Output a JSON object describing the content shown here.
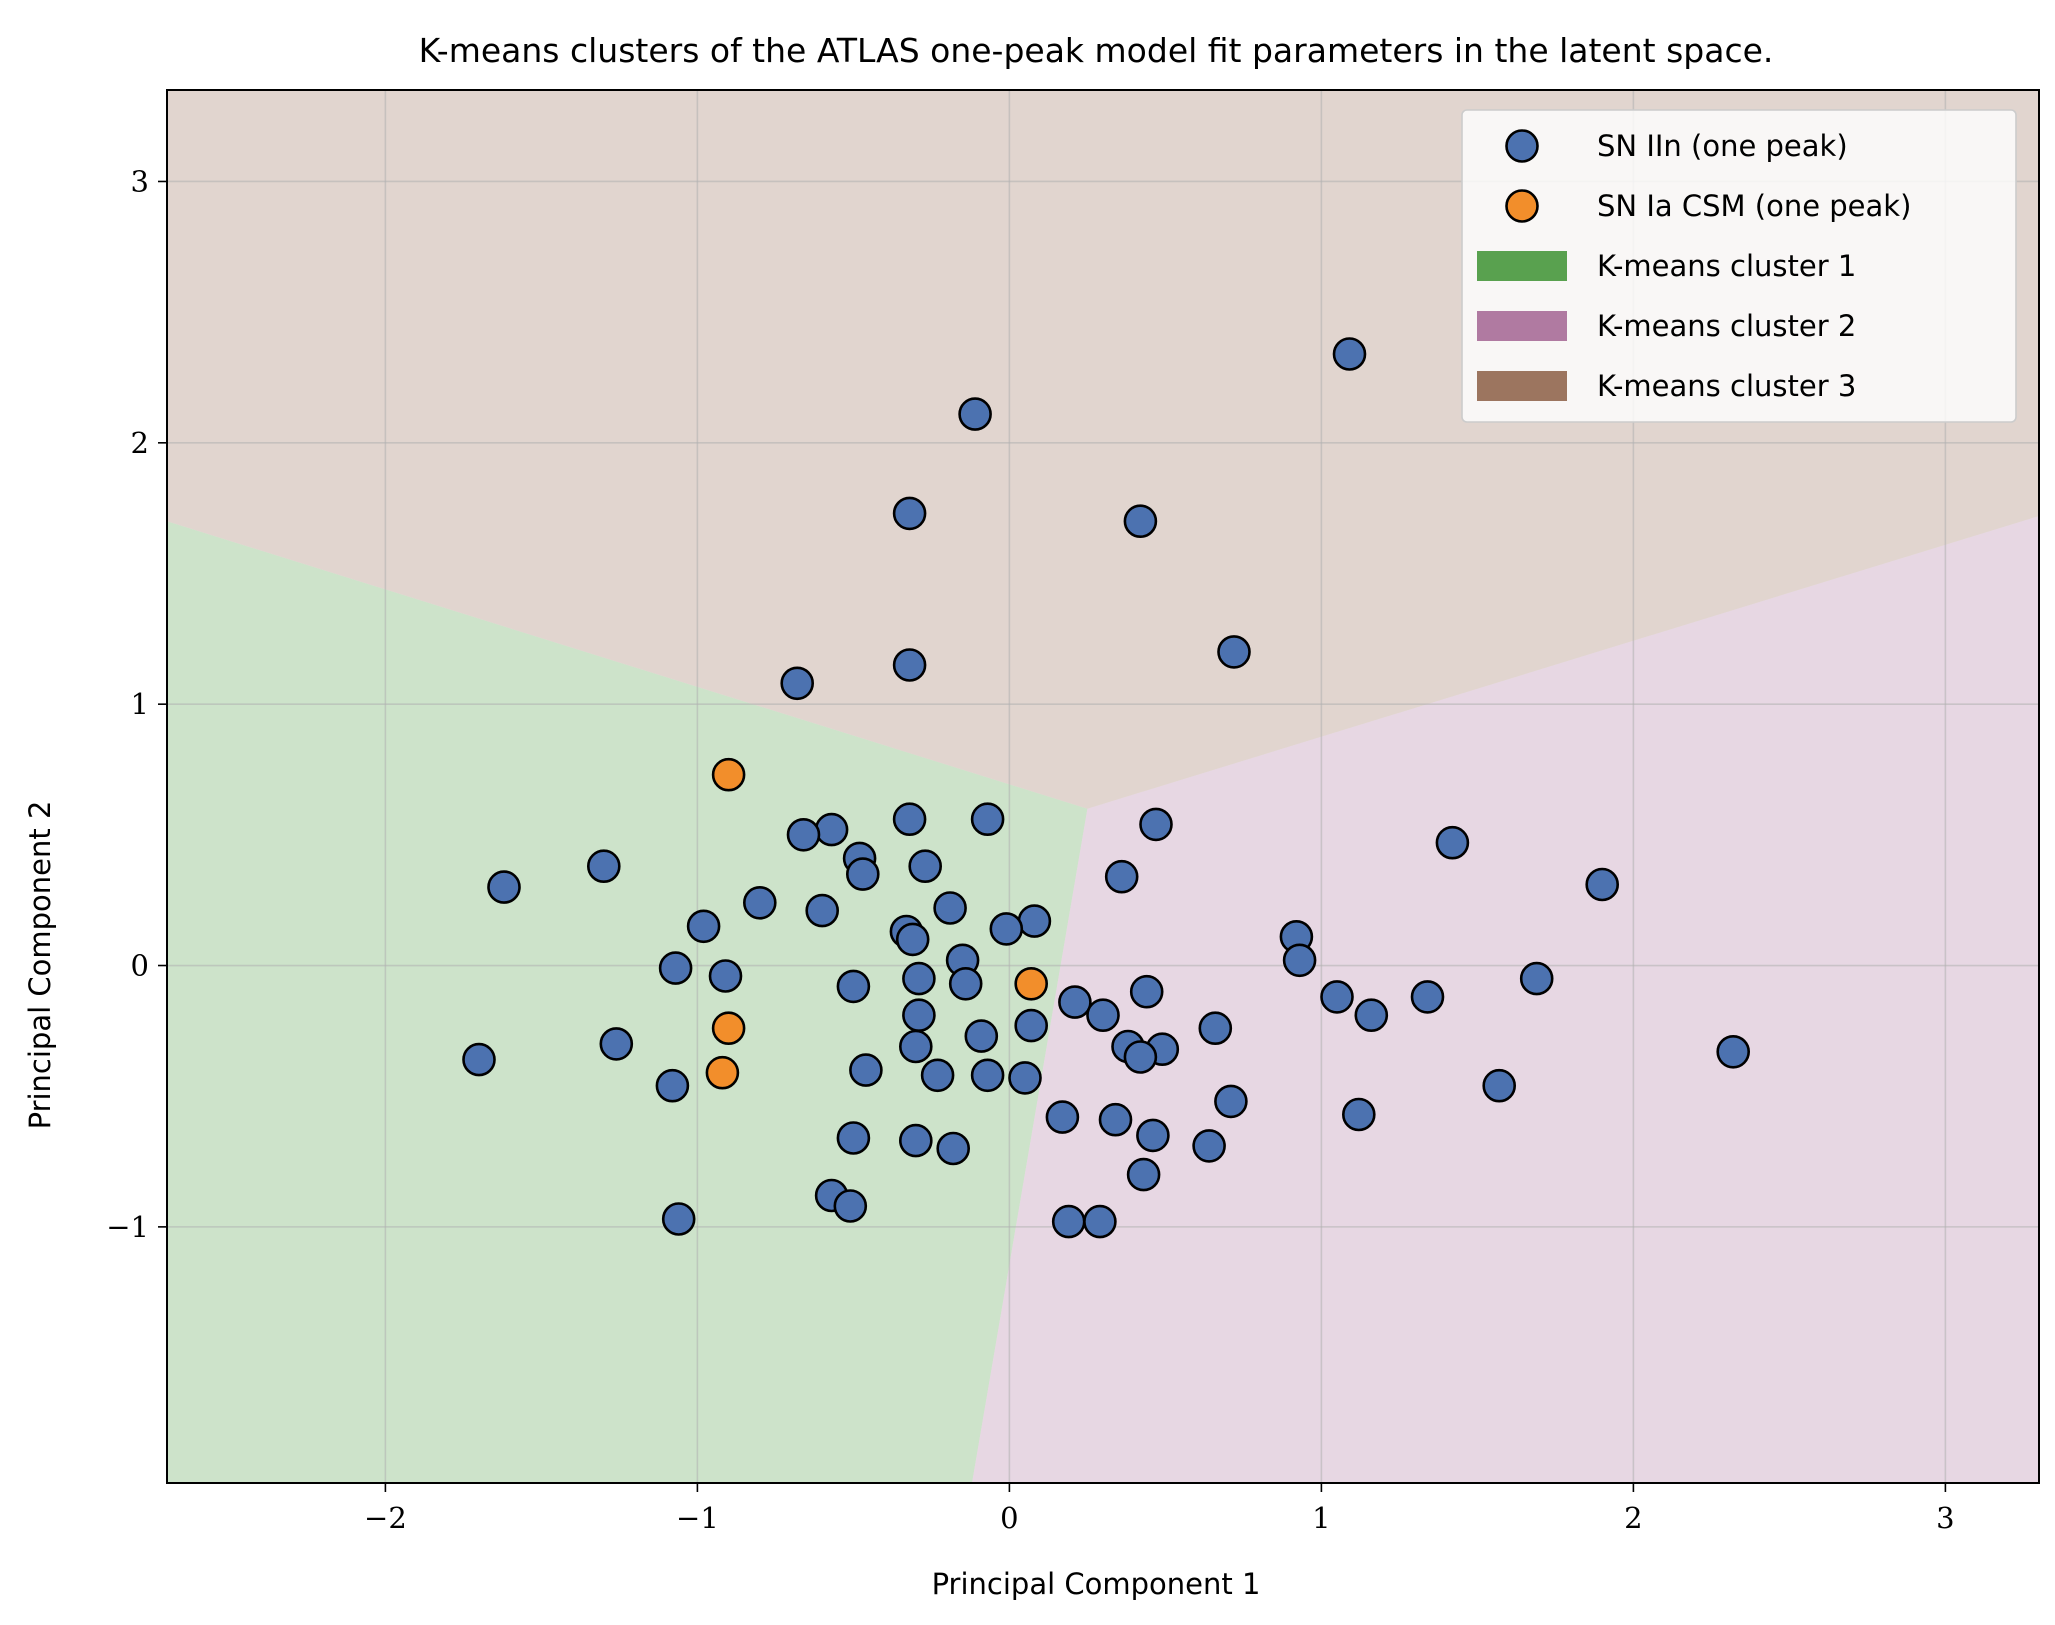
{
  "chart_data": {
    "type": "scatter",
    "title": "K-means clusters of the ATLAS one-peak model fit parameters in the latent space.",
    "xlabel": "Principal Component 1",
    "ylabel": "Principal Component 2",
    "xlim": [
      -2.7,
      3.3
    ],
    "ylim": [
      -1.98,
      3.35
    ],
    "xticks": [
      -2,
      -1,
      0,
      1,
      2,
      3
    ],
    "yticks": [
      -1,
      0,
      1,
      2,
      3
    ],
    "xtick_labels": [
      "−2",
      "−1",
      "0",
      "1",
      "2",
      "3"
    ],
    "ytick_labels": [
      "−1",
      "0",
      "1",
      "2",
      "3"
    ],
    "grid": true,
    "legend_position": "top-right",
    "series": [
      {
        "name": "SN IIn (one peak)",
        "kind": "points",
        "color": "#4c72b0",
        "points": [
          [
            1.09,
            2.34
          ],
          [
            -0.11,
            2.11
          ],
          [
            -0.32,
            1.73
          ],
          [
            0.42,
            1.7
          ],
          [
            0.72,
            1.2
          ],
          [
            -0.32,
            1.15
          ],
          [
            -0.68,
            1.08
          ],
          [
            -0.32,
            0.56
          ],
          [
            -0.07,
            0.56
          ],
          [
            0.47,
            0.54
          ],
          [
            -0.57,
            0.52
          ],
          [
            -0.66,
            0.5
          ],
          [
            1.42,
            0.47
          ],
          [
            -0.48,
            0.41
          ],
          [
            -0.47,
            0.35
          ],
          [
            -0.27,
            0.38
          ],
          [
            0.36,
            0.34
          ],
          [
            -1.62,
            0.3
          ],
          [
            -1.3,
            0.38
          ],
          [
            1.9,
            0.31
          ],
          [
            -0.8,
            0.24
          ],
          [
            -0.6,
            0.21
          ],
          [
            -0.19,
            0.22
          ],
          [
            -0.98,
            0.15
          ],
          [
            0.08,
            0.17
          ],
          [
            -0.01,
            0.14
          ],
          [
            -0.33,
            0.13
          ],
          [
            -0.31,
            0.1
          ],
          [
            0.92,
            0.11
          ],
          [
            0.93,
            0.02
          ],
          [
            -0.15,
            0.02
          ],
          [
            -1.07,
            -0.01
          ],
          [
            -0.91,
            -0.04
          ],
          [
            -0.29,
            -0.05
          ],
          [
            -0.5,
            -0.08
          ],
          [
            -0.14,
            -0.07
          ],
          [
            1.69,
            -0.05
          ],
          [
            0.44,
            -0.1
          ],
          [
            1.05,
            -0.12
          ],
          [
            1.34,
            -0.12
          ],
          [
            0.21,
            -0.14
          ],
          [
            0.3,
            -0.19
          ],
          [
            -0.29,
            -0.19
          ],
          [
            1.16,
            -0.19
          ],
          [
            0.07,
            -0.23
          ],
          [
            0.66,
            -0.24
          ],
          [
            -0.09,
            -0.27
          ],
          [
            -1.26,
            -0.3
          ],
          [
            -0.3,
            -0.31
          ],
          [
            0.38,
            -0.31
          ],
          [
            0.49,
            -0.32
          ],
          [
            2.32,
            -0.33
          ],
          [
            0.42,
            -0.35
          ],
          [
            -1.7,
            -0.36
          ],
          [
            -0.46,
            -0.4
          ],
          [
            -0.23,
            -0.42
          ],
          [
            -0.07,
            -0.42
          ],
          [
            0.05,
            -0.43
          ],
          [
            -1.08,
            -0.46
          ],
          [
            1.57,
            -0.46
          ],
          [
            0.71,
            -0.52
          ],
          [
            1.12,
            -0.57
          ],
          [
            0.17,
            -0.58
          ],
          [
            0.34,
            -0.59
          ],
          [
            -0.5,
            -0.66
          ],
          [
            0.46,
            -0.65
          ],
          [
            -0.3,
            -0.67
          ],
          [
            0.64,
            -0.69
          ],
          [
            -0.18,
            -0.7
          ],
          [
            0.43,
            -0.8
          ],
          [
            -0.57,
            -0.88
          ],
          [
            -0.51,
            -0.92
          ],
          [
            -1.06,
            -0.97
          ],
          [
            0.19,
            -0.98
          ],
          [
            0.29,
            -0.98
          ]
        ]
      },
      {
        "name": "SN Ia CSM (one peak)",
        "kind": "points",
        "color": "#f28e2b",
        "points": [
          [
            -0.9,
            0.73
          ],
          [
            0.07,
            -0.07
          ],
          [
            -0.9,
            -0.24
          ],
          [
            -0.92,
            -0.41
          ]
        ]
      },
      {
        "name": "K-means cluster 1",
        "kind": "region",
        "color": "#59a14f",
        "polygon": [
          [
            -2.7,
            -1.98
          ],
          [
            -2.7,
            1.7
          ],
          [
            0.25,
            0.6
          ],
          [
            -0.12,
            -1.98
          ]
        ]
      },
      {
        "name": "K-means cluster 2",
        "kind": "region",
        "color": "#b07aa1",
        "polygon": [
          [
            -0.12,
            -1.98
          ],
          [
            0.25,
            0.6
          ],
          [
            3.3,
            1.72
          ],
          [
            3.3,
            -1.98
          ]
        ]
      },
      {
        "name": "K-means cluster 3",
        "kind": "region",
        "color": "#9c755f",
        "polygon": [
          [
            -2.7,
            1.7
          ],
          [
            -2.7,
            3.35
          ],
          [
            3.3,
            3.35
          ],
          [
            3.3,
            1.72
          ],
          [
            0.25,
            0.6
          ]
        ]
      }
    ]
  }
}
